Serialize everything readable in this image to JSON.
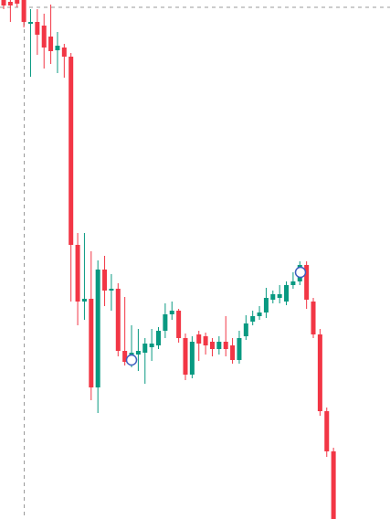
{
  "chart_data": {
    "type": "candlestick",
    "ylim": [
      0,
      568
    ],
    "up_color": "#089981",
    "down_color": "#f23645",
    "open": [
      568,
      566,
      568,
      568,
      542,
      544,
      540,
      528,
      513,
      516,
      506,
      300,
      238,
      241,
      144,
      273,
      250,
      252,
      184,
      176,
      180,
      182,
      188,
      190,
      206,
      224,
      228,
      198,
      158,
      202,
      200,
      194,
      186,
      194,
      190,
      174,
      200,
      216,
      222,
      226,
      240,
      242,
      238,
      256,
      260,
      278,
      238,
      202,
      118,
      74
    ],
    "high": [
      568,
      568,
      568,
      568,
      558,
      558,
      553,
      563,
      533,
      520,
      510,
      313,
      313,
      293,
      283,
      288,
      268,
      258,
      243,
      212,
      208,
      198,
      208,
      210,
      236,
      238,
      230,
      203,
      200,
      206,
      204,
      198,
      200,
      222,
      198,
      206,
      223,
      228,
      233,
      253,
      250,
      256,
      260,
      270,
      282,
      282,
      242,
      208,
      122,
      78
    ],
    "low": [
      558,
      544,
      560,
      538,
      484,
      508,
      493,
      498,
      488,
      483,
      238,
      212,
      218,
      130,
      116,
      233,
      228,
      178,
      168,
      166,
      162,
      148,
      173,
      186,
      198,
      218,
      193,
      152,
      154,
      173,
      180,
      178,
      180,
      178,
      170,
      170,
      196,
      212,
      218,
      220,
      236,
      236,
      234,
      252,
      256,
      230,
      198,
      113,
      68,
      0
    ],
    "close": [
      562,
      562,
      564,
      544,
      544,
      530,
      516,
      512,
      518,
      506,
      300,
      238,
      241,
      144,
      273,
      250,
      252,
      184,
      172,
      182,
      184,
      192,
      192,
      206,
      224,
      228,
      198,
      158,
      194,
      192,
      190,
      186,
      194,
      186,
      174,
      198,
      214,
      222,
      226,
      242,
      246,
      246,
      256,
      260,
      278,
      240,
      202,
      118,
      74,
      0
    ]
  }
}
